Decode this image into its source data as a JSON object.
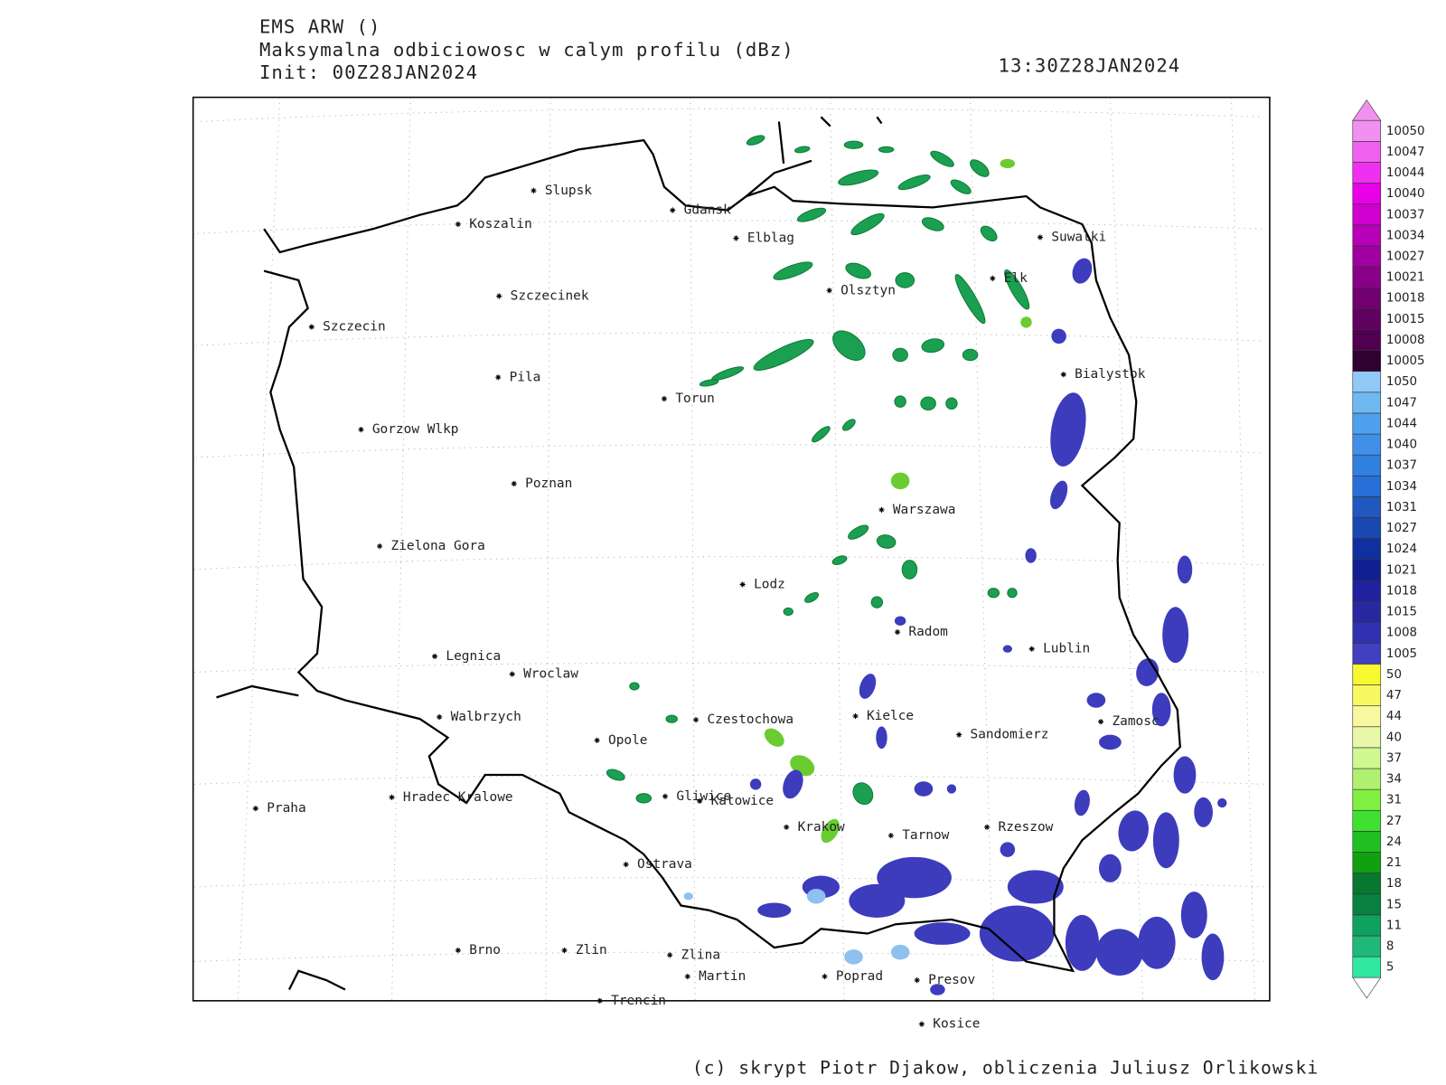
{
  "header": {
    "title": "EMS ARW ()",
    "subtitle": "Maksymalna odbiciowosc w calym profilu (dBz)",
    "init": "Init: 00Z28JAN2024",
    "valid": "13:30Z28JAN2024"
  },
  "cities": [
    "Slupsk",
    "Koszalin",
    "Gdansk",
    "Elblag",
    "Szczecinek",
    "Szczecin",
    "Olsztyn",
    "Elk",
    "Suwalki",
    "Bialystok",
    "Pila",
    "Torun",
    "Gorzow Wlkp",
    "Poznan",
    "Warszawa",
    "Zielona Gora",
    "Lodz",
    "Radom",
    "Lublin",
    "Legnica",
    "Wroclaw",
    "Walbrzych",
    "Czestochowa",
    "Kielce",
    "Zamosc",
    "Opole",
    "Sandomierz",
    "Praha",
    "Hradec Kralowe",
    "Gliwice",
    "Katowice",
    "Krakow",
    "Tarnow",
    "Rzeszow",
    "Ostrava",
    "Brno",
    "Zlin",
    "Zlina",
    "Martin",
    "Poprad",
    "Presov",
    "Trencin",
    "Kosice"
  ],
  "colorbar": {
    "levels": [
      5,
      8,
      11,
      15,
      18,
      21,
      24,
      27,
      31,
      34,
      37,
      40,
      44,
      47,
      50,
      1005,
      1008,
      1015,
      1018,
      1021,
      1024,
      1027,
      1031,
      1034,
      1037,
      1040,
      1044,
      1047,
      1050,
      10005,
      10008,
      10015,
      10018,
      10021,
      10027,
      10034,
      10037,
      10040,
      10044,
      10047,
      10050
    ],
    "colors": [
      "#30e8a0",
      "#20b878",
      "#10a060",
      "#088040",
      "#087830",
      "#10a010",
      "#20c020",
      "#40e030",
      "#80f040",
      "#b0f070",
      "#d0f890",
      "#e8f8a8",
      "#f8f8a0",
      "#f8f860",
      "#f8f830",
      "#4040c0",
      "#3030b0",
      "#2828a0",
      "#2020a0",
      "#102090",
      "#1030a0",
      "#1848b0",
      "#2058c0",
      "#2870d8",
      "#3080e0",
      "#4090e8",
      "#50a0f0",
      "#70b8f0",
      "#90c8f8",
      "#300030",
      "#500050",
      "#600060",
      "#700070",
      "#880088",
      "#a000a0",
      "#b800b8",
      "#d000d0",
      "#e800e8",
      "#f030f0",
      "#f060f0",
      "#f090f0"
    ]
  },
  "footer": "(c) skrypt Piotr Djakow, obliczenia Juliusz Orlikowski"
}
